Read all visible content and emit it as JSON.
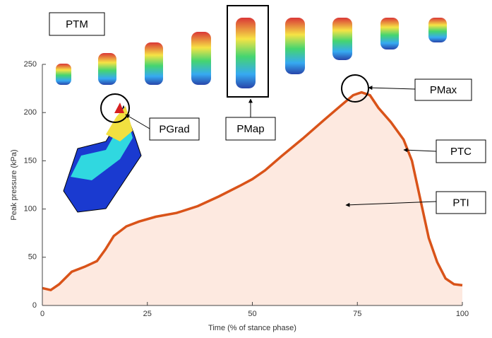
{
  "chart_data": {
    "type": "area",
    "xlabel": "Time (% of stance phase)",
    "ylabel": "Peak pressure (kPa)",
    "x": [
      0,
      2,
      4,
      7,
      10,
      13,
      15,
      17,
      20,
      23,
      27,
      32,
      37,
      42,
      47,
      50,
      53,
      57,
      62,
      67,
      71,
      74,
      76,
      78,
      80,
      83,
      86,
      88,
      90,
      92,
      94,
      96,
      98,
      100
    ],
    "series": [
      {
        "color": "#d95319",
        "fill": "#fde9e0",
        "values": [
          18,
          16,
          22,
          35,
          40,
          46,
          58,
          72,
          82,
          87,
          92,
          96,
          103,
          113,
          124,
          131,
          140,
          155,
          173,
          192,
          207,
          218,
          221,
          218,
          205,
          190,
          172,
          150,
          110,
          70,
          45,
          28,
          22,
          21
        ]
      }
    ],
    "xlim": [
      0,
      100
    ],
    "xticks": [
      0,
      25,
      50,
      75,
      100
    ],
    "ylim": [
      0,
      250
    ],
    "yticks": [
      0,
      50,
      100,
      150,
      200,
      250
    ],
    "annotations": [
      "PTM",
      "PMap",
      "PGrad",
      "PMax",
      "PTC",
      "PTI"
    ]
  }
}
